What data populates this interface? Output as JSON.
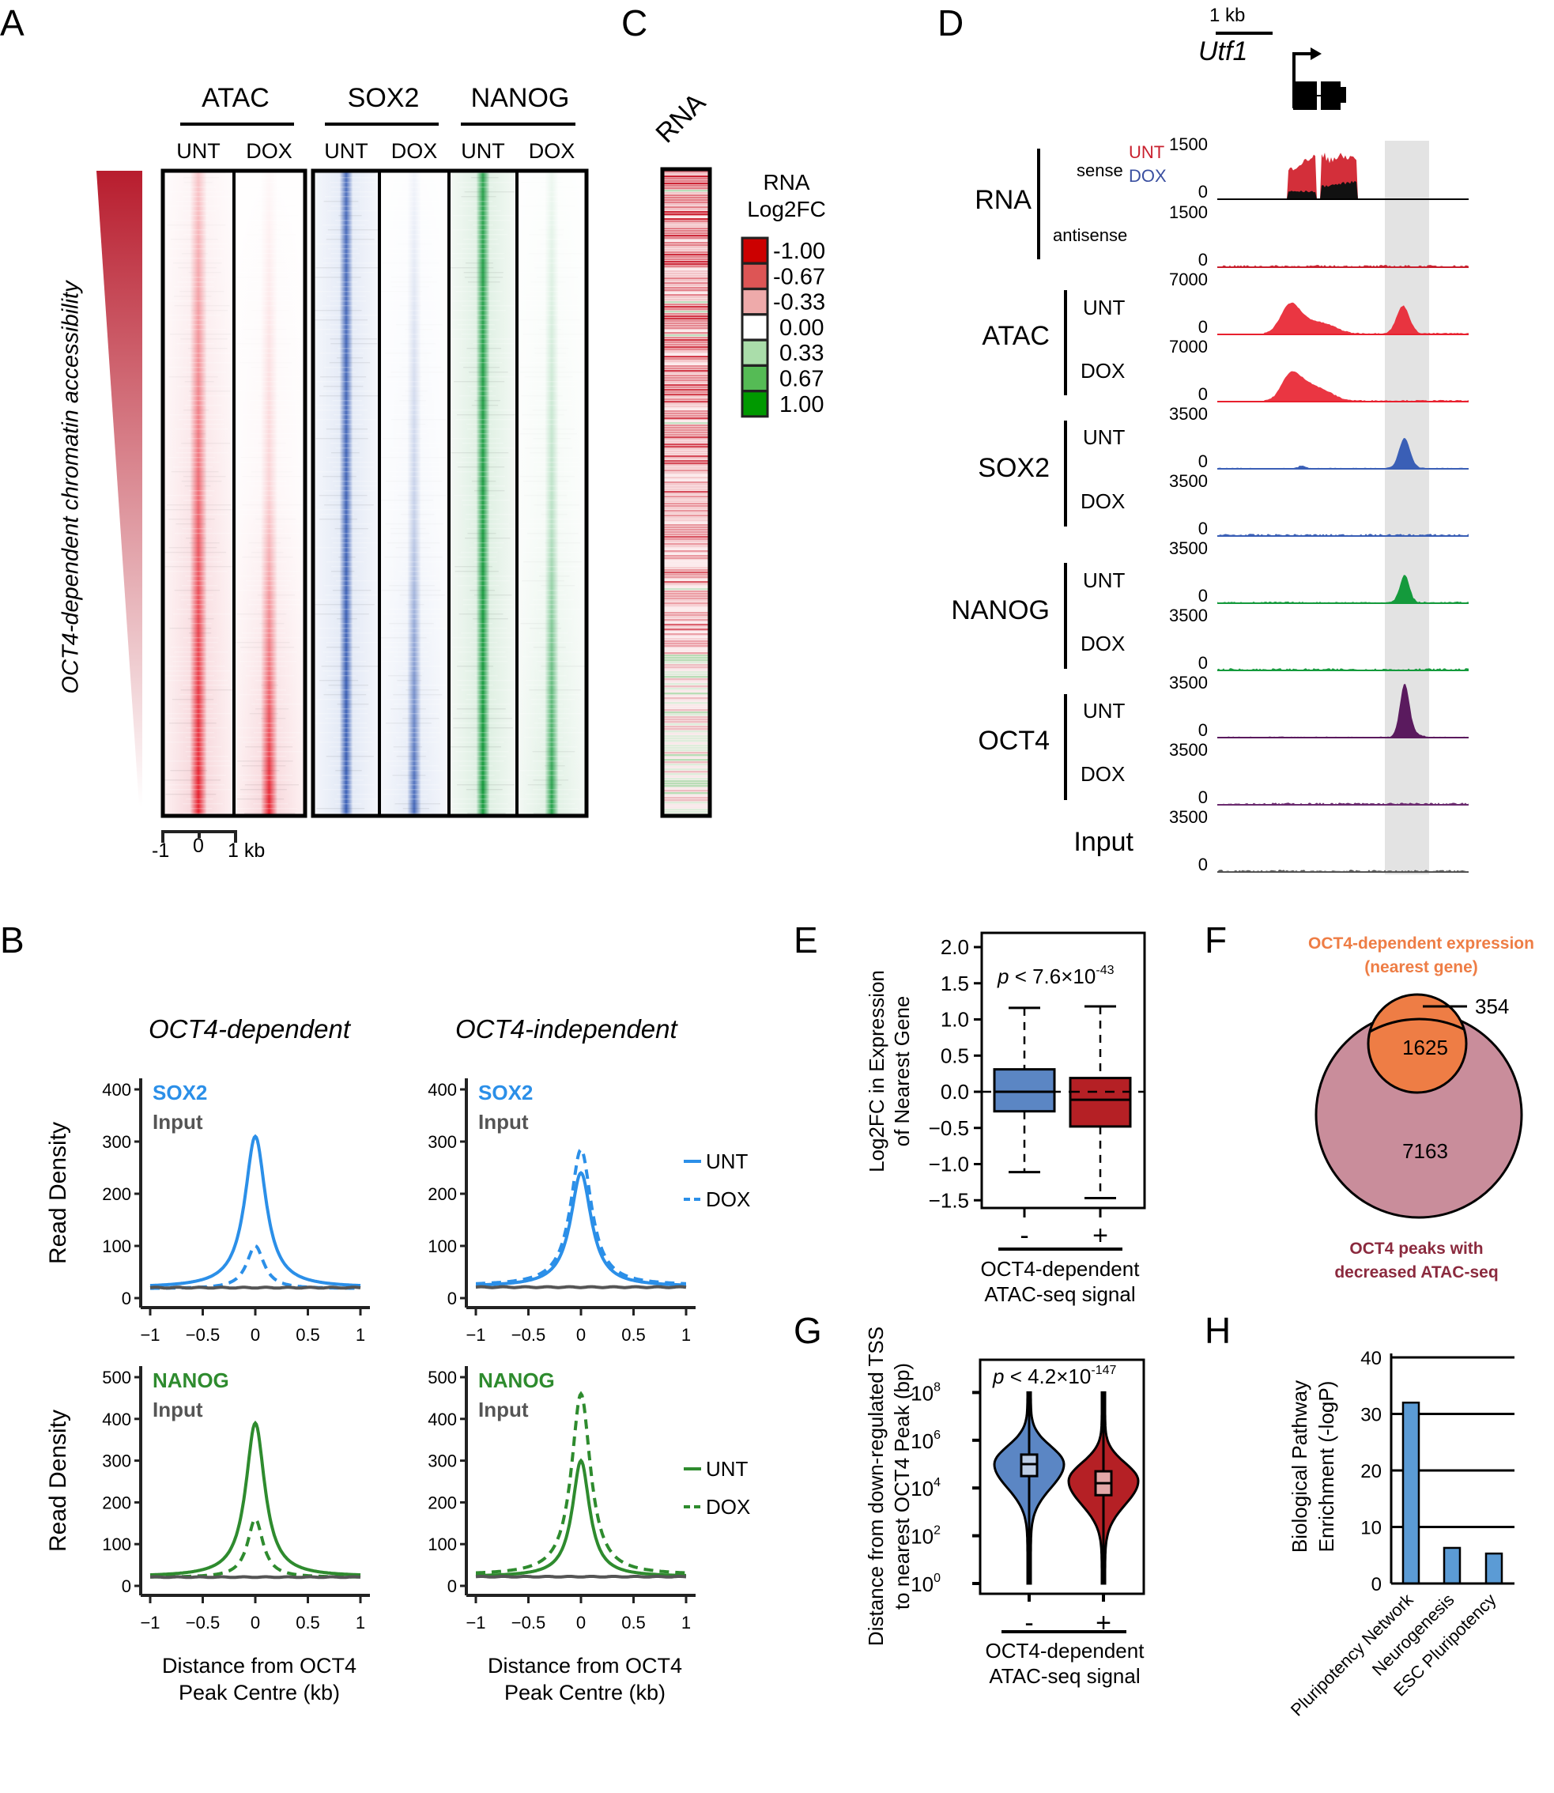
{
  "panels": {
    "A": {
      "letter": "A",
      "side_label": "OCT4-dependent chromatin accessibility",
      "groups": [
        {
          "name": "ATAC",
          "conditions": [
            "UNT",
            "DOX"
          ],
          "color": "#e8202e"
        },
        {
          "name": "SOX2",
          "conditions": [
            "UNT",
            "DOX"
          ],
          "color": "#3a5fb6"
        },
        {
          "name": "NANOG",
          "conditions": [
            "UNT",
            "DOX"
          ],
          "color": "#149a3c"
        }
      ],
      "scale": {
        "ticks": [
          "-1",
          "0",
          "1 kb"
        ]
      },
      "gradient_color": "#b81d2e"
    },
    "C": {
      "letter": "C",
      "column_label": "RNA",
      "legend_title_1": "RNA",
      "legend_title_2": "Log2FC",
      "legend": [
        {
          "label": "-1.00",
          "color": "#cc0000"
        },
        {
          "label": "-0.67",
          "color": "#dd5555"
        },
        {
          "label": "-0.33",
          "color": "#eeaaaa"
        },
        {
          "label": "0.00",
          "color": "#ffffff"
        },
        {
          "label": "0.33",
          "color": "#aaddaa"
        },
        {
          "label": "0.67",
          "color": "#55bb55"
        },
        {
          "label": "1.00",
          "color": "#009900"
        }
      ]
    },
    "D": {
      "letter": "D",
      "scale_bar": "1 kb",
      "gene": "Utf1",
      "legend_unt": "UNT",
      "legend_dox": "DOX",
      "legend_unt_color": "#c8202e",
      "legend_dox_color": "#3a4fa0",
      "groups": [
        {
          "name": "RNA",
          "subs": [
            "sense",
            "antisense"
          ]
        },
        {
          "name": "ATAC",
          "subs": [
            "UNT",
            "DOX"
          ]
        },
        {
          "name": "SOX2",
          "subs": [
            "UNT",
            "DOX"
          ]
        },
        {
          "name": "NANOG",
          "subs": [
            "UNT",
            "DOX"
          ]
        },
        {
          "name": "OCT4",
          "subs": [
            "UNT",
            "DOX"
          ]
        },
        {
          "name": "Input",
          "subs": []
        }
      ],
      "tracks": [
        {
          "name": "RNA sense",
          "max": "1500",
          "min": "0",
          "color": "#d32f3a"
        },
        {
          "name": "RNA antisense",
          "max": "1500",
          "min": "0",
          "color": "#c8202e"
        },
        {
          "name": "ATAC UNT",
          "max": "7000",
          "min": "0",
          "color": "#e8202e"
        },
        {
          "name": "ATAC DOX",
          "max": "7000",
          "min": "0",
          "color": "#e8202e"
        },
        {
          "name": "SOX2 UNT",
          "max": "3500",
          "min": "0",
          "color": "#3a5fb6"
        },
        {
          "name": "SOX2 DOX",
          "max": "3500",
          "min": "0",
          "color": "#3a5fb6"
        },
        {
          "name": "NANOG UNT",
          "max": "3500",
          "min": "0",
          "color": "#149a3c"
        },
        {
          "name": "NANOG DOX",
          "max": "3500",
          "min": "0",
          "color": "#149a3c"
        },
        {
          "name": "OCT4 UNT",
          "max": "3500",
          "min": "0",
          "color": "#5a1a5e"
        },
        {
          "name": "OCT4 DOX",
          "max": "3500",
          "min": "0",
          "color": "#6a2a6e"
        },
        {
          "name": "Input",
          "max": "3500",
          "min": "0",
          "color": "#555555"
        }
      ]
    },
    "B": {
      "letter": "B",
      "col_titles": [
        "OCT4-dependent",
        "OCT4-independent"
      ],
      "ylabel": "Read Density",
      "xlabel_1": "Distance from OCT4",
      "xlabel_2": "Peak Centre (kb)",
      "legend": [
        {
          "label": "UNT",
          "style": "solid"
        },
        {
          "label": "DOX",
          "style": "dashed"
        }
      ],
      "input_label": "Input"
    },
    "E": {
      "letter": "E"
    },
    "F": {
      "letter": "F"
    },
    "G": {
      "letter": "G"
    },
    "H": {
      "letter": "H"
    }
  },
  "chart_data": [
    {
      "id": "B-sox2-dependent",
      "type": "line",
      "title": "OCT4-dependent",
      "factor": "SOX2",
      "factor_color": "#2b8fe8",
      "xlabel": "Distance from OCT4 Peak Centre (kb)",
      "ylabel": "Read Density",
      "xlim": [
        -1,
        1
      ],
      "ylim": [
        0,
        400
      ],
      "xticks": [
        "-1",
        "-0.5",
        "0",
        "0.5",
        "1"
      ],
      "yticks": [
        "0",
        "100",
        "200",
        "300",
        "400"
      ],
      "series": [
        {
          "name": "UNT",
          "baseline": 20,
          "peak": 310,
          "width": 0.12
        },
        {
          "name": "DOX",
          "baseline": 18,
          "peak": 100,
          "width": 0.1
        },
        {
          "name": "Input",
          "baseline": 20,
          "peak": 20,
          "width": 0.1
        }
      ]
    },
    {
      "id": "B-sox2-independent",
      "type": "line",
      "title": "OCT4-independent",
      "factor": "SOX2",
      "factor_color": "#2b8fe8",
      "xlim": [
        -1,
        1
      ],
      "ylim": [
        0,
        400
      ],
      "xticks": [
        "-1",
        "-0.5",
        "0",
        "0.5",
        "1"
      ],
      "yticks": [
        "0",
        "100",
        "200",
        "300",
        "400"
      ],
      "series": [
        {
          "name": "UNT",
          "baseline": 22,
          "peak": 240,
          "width": 0.12
        },
        {
          "name": "DOX",
          "baseline": 24,
          "peak": 285,
          "width": 0.12
        },
        {
          "name": "Input",
          "baseline": 21,
          "peak": 21,
          "width": 0.1
        }
      ],
      "legend": "right"
    },
    {
      "id": "B-nanog-dependent",
      "type": "line",
      "title": "OCT4-dependent",
      "factor": "NANOG",
      "factor_color": "#2e8b2e",
      "xlabel": "Distance from OCT4 Peak Centre (kb)",
      "ylabel": "Read Density",
      "xlim": [
        -1,
        1
      ],
      "ylim": [
        0,
        500
      ],
      "xticks": [
        "-1",
        "-0.5",
        "0",
        "0.5",
        "1"
      ],
      "yticks": [
        "0",
        "100",
        "200",
        "300",
        "400",
        "500"
      ],
      "series": [
        {
          "name": "UNT",
          "baseline": 22,
          "peak": 390,
          "width": 0.11
        },
        {
          "name": "DOX",
          "baseline": 20,
          "peak": 160,
          "width": 0.09
        },
        {
          "name": "Input",
          "baseline": 21,
          "peak": 21,
          "width": 0.1
        }
      ]
    },
    {
      "id": "B-nanog-independent",
      "type": "line",
      "title": "OCT4-independent",
      "factor": "NANOG",
      "factor_color": "#2e8b2e",
      "xlabel": "Distance from OCT4 Peak Centre (kb)",
      "xlim": [
        -1,
        1
      ],
      "ylim": [
        0,
        500
      ],
      "xticks": [
        "-1",
        "-0.5",
        "0",
        "0.5",
        "1"
      ],
      "yticks": [
        "0",
        "100",
        "200",
        "300",
        "400",
        "500"
      ],
      "series": [
        {
          "name": "UNT",
          "baseline": 22,
          "peak": 300,
          "width": 0.1
        },
        {
          "name": "DOX",
          "baseline": 26,
          "peak": 460,
          "width": 0.11
        },
        {
          "name": "Input",
          "baseline": 22,
          "peak": 22,
          "width": 0.1
        }
      ],
      "legend": "right"
    },
    {
      "id": "E",
      "type": "box",
      "ylabel": "Log2FC in Expression of Nearest Gene",
      "xlabel": "OCT4-dependent ATAC-seq signal",
      "categories": [
        "-",
        "+"
      ],
      "ylim": [
        -1.6,
        2.1
      ],
      "yticks": [
        "2.0",
        "1.5",
        "1.0",
        "0.5",
        "0.0",
        "−0.5",
        "−1.0",
        "−1.5"
      ],
      "ytick_values": [
        2.0,
        1.5,
        1.0,
        0.5,
        0.0,
        -0.5,
        -1.0,
        -1.5
      ],
      "annotation": {
        "p": "p",
        "text": " < 7.6×10",
        "exp": "-43"
      },
      "boxes": [
        {
          "cat": "-",
          "q1": -0.27,
          "median": 0.0,
          "q3": 0.31,
          "whisker_low": -1.11,
          "whisker_high": 1.16,
          "color": "#5b86c4"
        },
        {
          "cat": "+",
          "q1": -0.48,
          "median": -0.11,
          "q3": 0.19,
          "whisker_low": -1.47,
          "whisker_high": 1.18,
          "color": "#b52025"
        }
      ],
      "reference_line": 0.0
    },
    {
      "id": "F",
      "type": "venn",
      "sets": [
        {
          "label_1": "OCT4-dependent expression",
          "label_2": "(nearest gene)",
          "color": "#ee7d45",
          "only": 354
        },
        {
          "label_1": "OCT4 peaks with",
          "label_2": "decreased ATAC-seq",
          "color": "#c98d9b",
          "label_color": "#8b2a3e",
          "only": 7163
        }
      ],
      "intersection": 1625,
      "labels": {
        "only_a": "354",
        "both": "1625",
        "only_b": "7163"
      }
    },
    {
      "id": "G",
      "type": "violin",
      "ylabel": "Distance from down-regulated TSS to nearest OCT4 Peak (bp)",
      "xlabel": "OCT4-dependent ATAC-seq signal",
      "categories": [
        "-",
        "+"
      ],
      "yscale": "log10",
      "ylim_log10": [
        -0.3,
        9.5
      ],
      "yticks": [
        {
          "base": "10",
          "exp": "8",
          "v": 8
        },
        {
          "base": "10",
          "exp": "6",
          "v": 6
        },
        {
          "base": "10",
          "exp": "4",
          "v": 4
        },
        {
          "base": "10",
          "exp": "2",
          "v": 2
        },
        {
          "base": "10",
          "exp": "0",
          "v": 0
        }
      ],
      "annotation": {
        "p": "p",
        "text": " < 4.2×10",
        "exp": "-147"
      },
      "violins": [
        {
          "cat": "-",
          "min_log": 0,
          "max_log": 8,
          "mode_log": 5.0,
          "q1_log": 4.5,
          "median_log": 5.0,
          "q3_log": 5.4,
          "color": "#5b86c4",
          "box_color": "#bccde6"
        },
        {
          "cat": "+",
          "min_log": 0,
          "max_log": 8,
          "mode_log": 4.3,
          "q1_log": 3.7,
          "median_log": 4.2,
          "q3_log": 4.7,
          "color": "#b52025",
          "box_color": "#e3a8a8"
        }
      ]
    },
    {
      "id": "H",
      "type": "bar",
      "ylabel": "Biological Pathway Enrichment (-logP)",
      "categories": [
        "Pluripotency Network",
        "Neurogenesis",
        "ESC Pluripotency"
      ],
      "values": [
        32,
        6.3,
        5.3
      ],
      "ylim": [
        0,
        40
      ],
      "yticks": [
        "0",
        "10",
        "20",
        "30",
        "40"
      ],
      "grid": true,
      "color": "#5b9bd5"
    }
  ]
}
